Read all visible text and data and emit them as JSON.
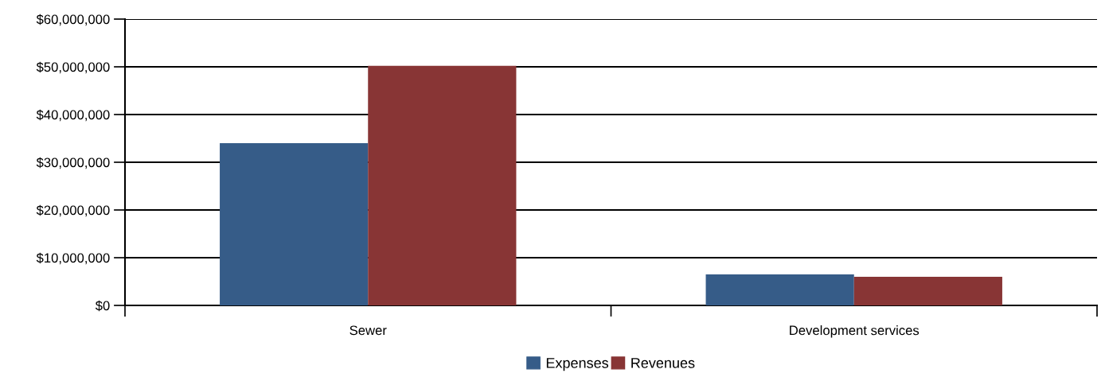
{
  "chart_data": {
    "type": "bar",
    "categories": [
      "Sewer",
      "Development services"
    ],
    "series": [
      {
        "name": "Expenses",
        "color": "#365c88",
        "values": [
          34000000,
          6500000
        ]
      },
      {
        "name": "Revenues",
        "color": "#883535",
        "values": [
          50200000,
          6000000
        ]
      }
    ],
    "ylim": [
      0,
      60000000
    ],
    "yticks": [
      {
        "value": 0,
        "label": "$0"
      },
      {
        "value": 10000000,
        "label": "$10,000,000"
      },
      {
        "value": 20000000,
        "label": "$20,000,000"
      },
      {
        "value": 30000000,
        "label": "$30,000,000"
      },
      {
        "value": 40000000,
        "label": "$40,000,000"
      },
      {
        "value": 50000000,
        "label": "$50,000,000"
      },
      {
        "value": 60000000,
        "label": "$60,000,000"
      }
    ],
    "grid": "y",
    "legend": "bottom"
  }
}
